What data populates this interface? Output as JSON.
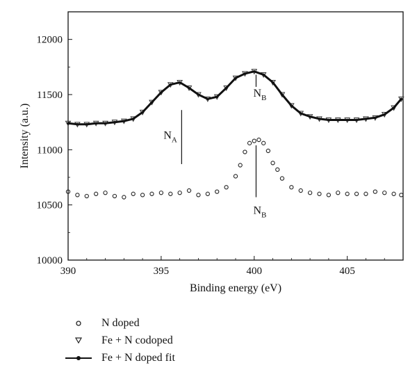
{
  "chart_data": {
    "type": "scatter",
    "xlabel": "Binding energy (eV)",
    "ylabel": "Intensity (a.u.)",
    "xlim": [
      390,
      408
    ],
    "ylim": [
      10000,
      12250
    ],
    "x_ticks": [
      390,
      395,
      400,
      405
    ],
    "y_ticks": [
      10000,
      10500,
      11000,
      11500,
      12000
    ],
    "annotations": [
      {
        "text": "N",
        "sub": "A",
        "x": 396.1,
        "y_top": 11360,
        "y_bottom": 10870,
        "label_y": 11100
      },
      {
        "text": "N",
        "sub": "B",
        "x": 400.1,
        "y_top": 11680,
        "y_bottom": 11570,
        "label_y": 11480
      },
      {
        "text": "N",
        "sub": "B",
        "x": 400.1,
        "y_top": 11040,
        "y_bottom": 10570,
        "label_y": 10420
      }
    ],
    "series": [
      {
        "name": "N doped",
        "marker": "circle",
        "x": [
          390.0,
          390.5,
          391.0,
          391.5,
          392.0,
          392.5,
          393.0,
          393.5,
          394.0,
          394.5,
          395.0,
          395.5,
          396.0,
          396.5,
          397.0,
          397.5,
          398.0,
          398.5,
          399.0,
          399.25,
          399.5,
          399.75,
          400.0,
          400.25,
          400.5,
          400.75,
          401.0,
          401.25,
          401.5,
          402.0,
          402.5,
          403.0,
          403.5,
          404.0,
          404.5,
          405.0,
          405.5,
          406.0,
          406.5,
          407.0,
          407.5,
          407.9
        ],
        "y": [
          10620,
          10590,
          10580,
          10600,
          10610,
          10580,
          10570,
          10600,
          10590,
          10600,
          10610,
          10600,
          10610,
          10630,
          10590,
          10600,
          10620,
          10660,
          10760,
          10860,
          10980,
          11060,
          11080,
          11090,
          11060,
          10990,
          10880,
          10820,
          10740,
          10660,
          10630,
          10610,
          10600,
          10590,
          10610,
          10600,
          10600,
          10600,
          10620,
          10610,
          10600,
          10590
        ]
      },
      {
        "name": "Fe + N codoped",
        "marker": "triangle-down",
        "x": [
          390.0,
          390.5,
          391.0,
          391.5,
          392.0,
          392.5,
          393.0,
          393.5,
          394.0,
          394.5,
          395.0,
          395.5,
          396.0,
          396.5,
          397.0,
          397.5,
          398.0,
          398.5,
          399.0,
          399.5,
          400.0,
          400.5,
          401.0,
          401.5,
          402.0,
          402.5,
          403.0,
          403.5,
          404.0,
          404.5,
          405.0,
          405.5,
          406.0,
          406.5,
          407.0,
          407.5,
          407.9
        ],
        "y": [
          11240,
          11230,
          11230,
          11240,
          11240,
          11250,
          11260,
          11280,
          11340,
          11430,
          11520,
          11590,
          11610,
          11560,
          11500,
          11460,
          11480,
          11560,
          11650,
          11690,
          11710,
          11680,
          11610,
          11500,
          11400,
          11330,
          11300,
          11280,
          11270,
          11270,
          11270,
          11270,
          11280,
          11290,
          11320,
          11380,
          11460
        ]
      },
      {
        "name": "Fe + N doped fit",
        "marker": "line",
        "x": [
          390.0,
          390.5,
          391.0,
          391.5,
          392.0,
          392.5,
          393.0,
          393.5,
          394.0,
          394.5,
          395.0,
          395.5,
          396.0,
          396.5,
          397.0,
          397.5,
          398.0,
          398.5,
          399.0,
          399.5,
          400.0,
          400.5,
          401.0,
          401.5,
          402.0,
          402.5,
          403.0,
          403.5,
          404.0,
          404.5,
          405.0,
          405.5,
          406.0,
          406.5,
          407.0,
          407.5,
          407.9
        ],
        "y": [
          11240,
          11230,
          11230,
          11240,
          11240,
          11250,
          11260,
          11280,
          11340,
          11430,
          11520,
          11590,
          11610,
          11560,
          11500,
          11460,
          11480,
          11560,
          11650,
          11690,
          11710,
          11680,
          11610,
          11500,
          11400,
          11330,
          11300,
          11280,
          11270,
          11270,
          11270,
          11270,
          11280,
          11290,
          11320,
          11380,
          11460
        ]
      }
    ],
    "legend_placement": "bottom-left, below plot"
  }
}
